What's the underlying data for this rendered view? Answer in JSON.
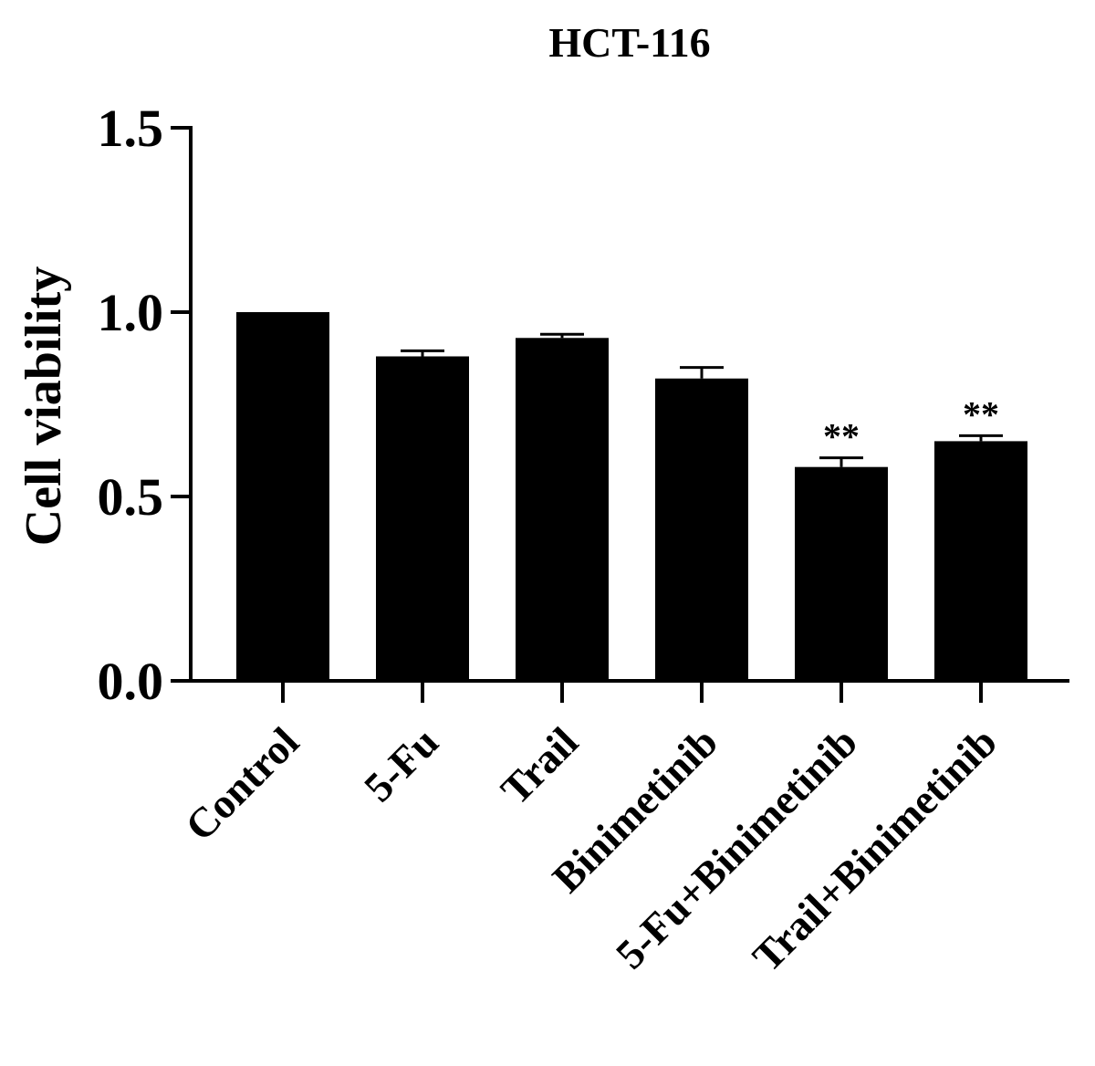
{
  "chart_data": {
    "type": "bar",
    "title": "HCT-116",
    "xlabel": "",
    "ylabel": "Cell viability",
    "ylim": [
      0,
      1.5
    ],
    "yticks": [
      0.0,
      0.5,
      1.0,
      1.5
    ],
    "ytick_labels": [
      "0.0",
      "0.5",
      "1.0",
      "1.5"
    ],
    "categories": [
      "Control",
      "5-Fu",
      "Trail",
      "Binimetinib",
      "5-Fu+Binimetinib",
      "Trail+Binimetinib"
    ],
    "values": [
      1.0,
      0.88,
      0.93,
      0.82,
      0.58,
      0.65
    ],
    "errors": [
      0.0,
      0.015,
      0.01,
      0.03,
      0.025,
      0.015
    ],
    "annotations": [
      "",
      "",
      "",
      "",
      "**",
      "**"
    ],
    "bar_color": "#000000",
    "grid": false,
    "legend": "none"
  }
}
